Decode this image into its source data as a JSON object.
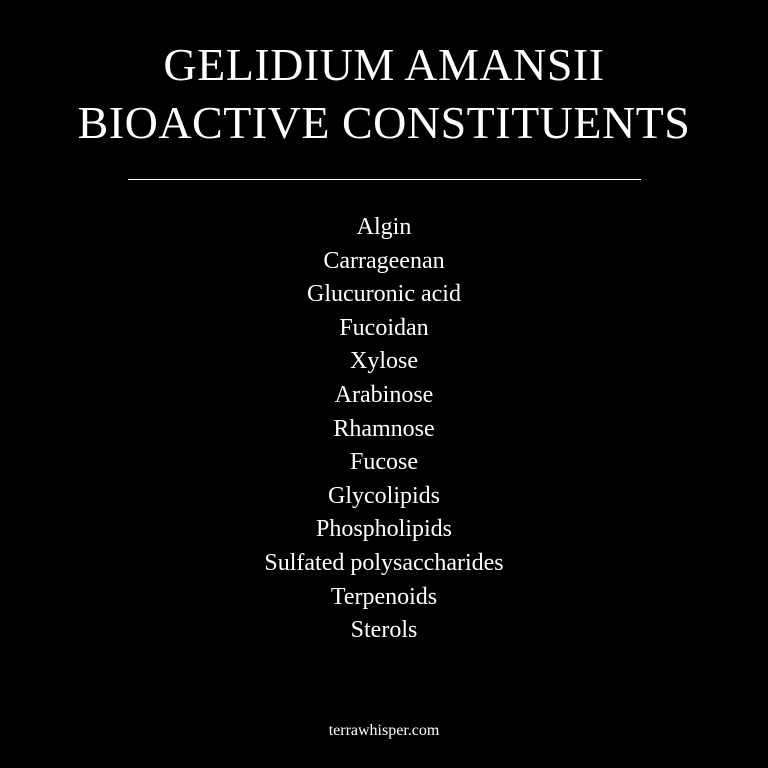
{
  "title": {
    "line1": "GELIDIUM AMANSII",
    "line2": "BIOACTIVE CONSTITUENTS"
  },
  "constituents": [
    "Algin",
    "Carrageenan",
    "Glucuronic acid",
    "Fucoidan",
    "Xylose",
    "Arabinose",
    "Rhamnose",
    "Fucose",
    "Glycolipids",
    "Phospholipids",
    "Sulfated polysaccharides",
    "Terpenoids",
    "Sterols"
  ],
  "footer": {
    "site": "terrawhisper.com"
  },
  "colors": {
    "background": "#000000",
    "text": "#ffffff"
  }
}
